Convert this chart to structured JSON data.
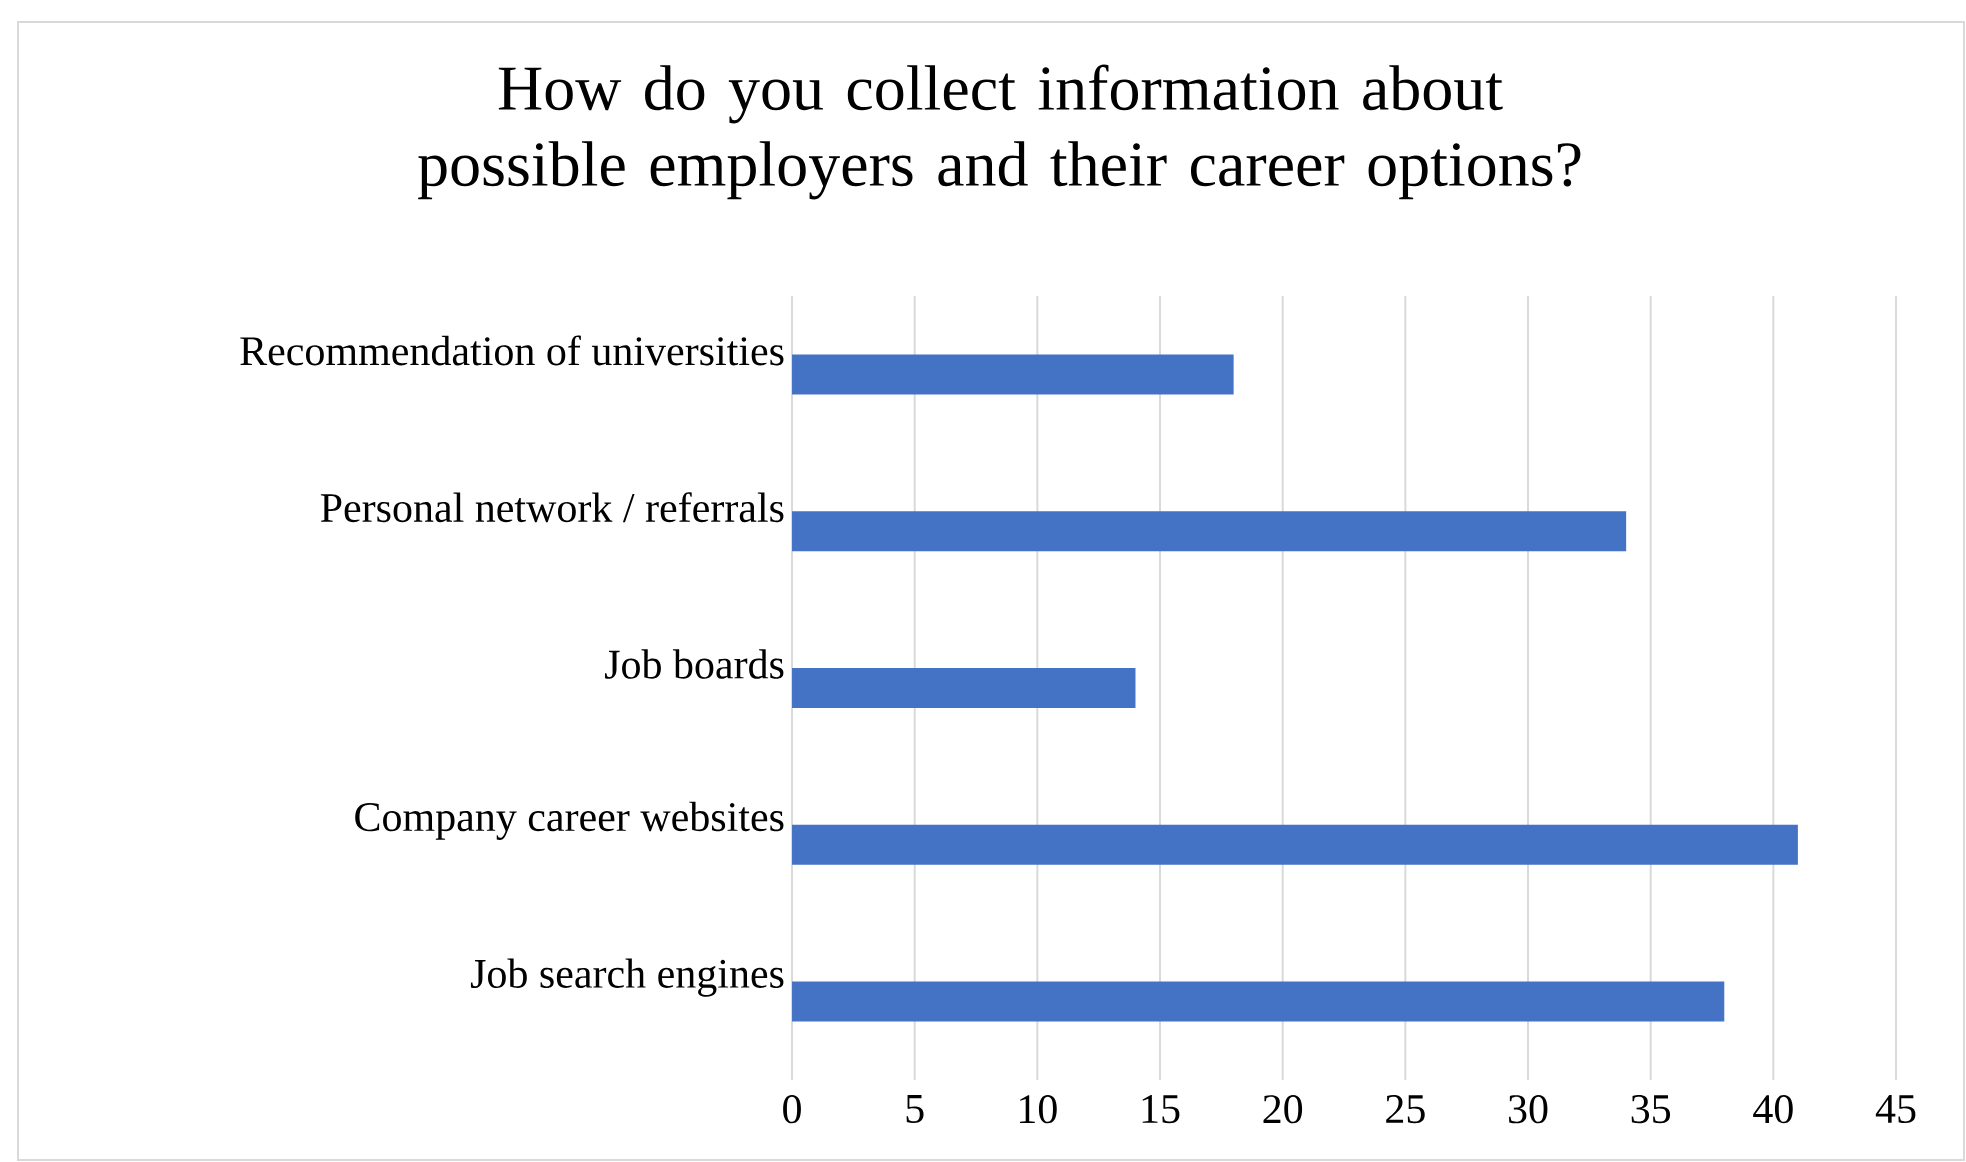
{
  "chart_data": {
    "type": "bar",
    "orientation": "horizontal",
    "title": "How do you collect information about possible employers and their career options?",
    "categories": [
      "Recommendation of universities",
      "Personal network / referrals",
      "Job boards",
      "Company career websites",
      "Job search engines"
    ],
    "values": [
      18,
      34,
      14,
      41,
      38
    ],
    "color": "#4472c4",
    "xlim": [
      0,
      45
    ],
    "xticks": [
      0,
      5,
      10,
      15,
      20,
      25,
      30,
      35,
      40,
      45
    ],
    "grid": "x"
  }
}
